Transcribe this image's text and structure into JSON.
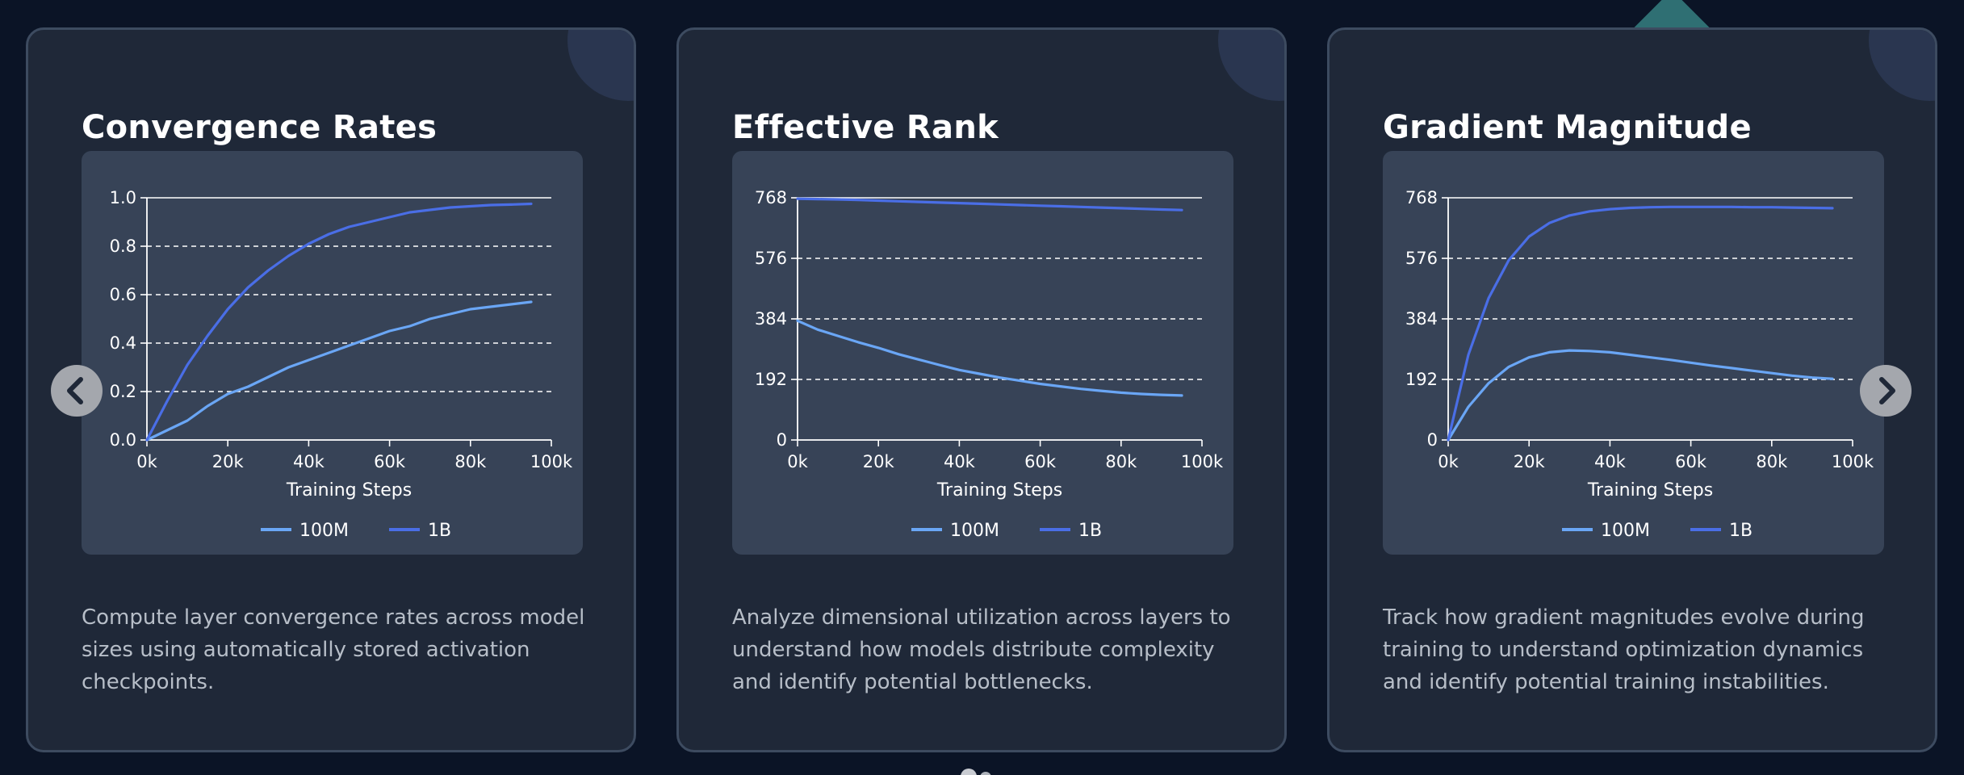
{
  "carousel": {
    "prev_icon": "chevron-left-icon",
    "next_icon": "chevron-right-icon",
    "dots": 2
  },
  "colors": {
    "background": "#0b1426",
    "card": "#1f2838",
    "card_border": "#3d4b60",
    "chart_panel": "#374357",
    "series_100M": "#6aa6f5",
    "series_1B": "#4a6ee6"
  },
  "cards": [
    {
      "title": "Convergence Rates",
      "description": "Compute layer convergence rates across model sizes using automatically stored activation checkpoints.",
      "chart_data": {
        "type": "line",
        "title": "",
        "xlabel": "Training Steps",
        "ylabel": "",
        "xlim": [
          0,
          100000
        ],
        "ylim": [
          0,
          1.0
        ],
        "x_ticks": [
          "0k",
          "20k",
          "40k",
          "60k",
          "80k",
          "100k"
        ],
        "y_ticks": [
          "0.0",
          "0.2",
          "0.4",
          "0.6",
          "0.8",
          "1.0"
        ],
        "y_tick_values": [
          0,
          0.2,
          0.4,
          0.6,
          0.8,
          1.0
        ],
        "grid": "horizontal dashed",
        "legend_position": "bottom",
        "x": [
          0,
          5000,
          10000,
          15000,
          20000,
          25000,
          30000,
          35000,
          40000,
          45000,
          50000,
          55000,
          60000,
          65000,
          70000,
          75000,
          80000,
          85000,
          90000,
          95000
        ],
        "series": [
          {
            "name": "100M",
            "color": "#6aa6f5",
            "values": [
              0.0,
              0.04,
              0.08,
              0.14,
              0.19,
              0.22,
              0.26,
              0.3,
              0.33,
              0.36,
              0.39,
              0.42,
              0.45,
              0.47,
              0.5,
              0.52,
              0.54,
              0.55,
              0.56,
              0.57
            ]
          },
          {
            "name": "1B",
            "color": "#4a6ee6",
            "values": [
              0.0,
              0.16,
              0.31,
              0.43,
              0.54,
              0.63,
              0.7,
              0.76,
              0.81,
              0.85,
              0.88,
              0.9,
              0.92,
              0.94,
              0.95,
              0.96,
              0.965,
              0.97,
              0.972,
              0.975
            ]
          }
        ]
      }
    },
    {
      "title": "Effective Rank",
      "description": "Analyze dimensional utilization across layers to understand how models distribute complexity and identify potential bottlenecks.",
      "chart_data": {
        "type": "line",
        "title": "",
        "xlabel": "Training Steps",
        "ylabel": "",
        "xlim": [
          0,
          100000
        ],
        "ylim": [
          0,
          768
        ],
        "x_ticks": [
          "0k",
          "20k",
          "40k",
          "60k",
          "80k",
          "100k"
        ],
        "y_ticks": [
          "0",
          "192",
          "384",
          "576",
          "768"
        ],
        "y_tick_values": [
          0,
          192,
          384,
          576,
          768
        ],
        "grid": "horizontal dashed",
        "legend_position": "bottom",
        "x": [
          0,
          5000,
          10000,
          15000,
          20000,
          25000,
          30000,
          35000,
          40000,
          45000,
          50000,
          55000,
          60000,
          65000,
          70000,
          75000,
          80000,
          85000,
          90000,
          95000
        ],
        "series": [
          {
            "name": "100M",
            "color": "#6aa6f5",
            "values": [
              378,
              350,
              330,
              310,
              292,
              272,
              255,
              238,
              222,
              210,
              198,
              188,
              178,
              170,
              162,
              156,
              150,
              146,
              143,
              141
            ]
          },
          {
            "name": "1B",
            "color": "#4a6ee6",
            "values": [
              765,
              764,
              763,
              761,
              759,
              757,
              755,
              753,
              751,
              749,
              747,
              745,
              743,
              741,
              739,
              737,
              735,
              733,
              731,
              729
            ]
          }
        ]
      }
    },
    {
      "title": "Gradient Magnitude",
      "description": "Track how gradient magnitudes evolve during training to understand optimization dynamics and identify potential training instabilities.",
      "chart_data": {
        "type": "line",
        "title": "",
        "xlabel": "Training Steps",
        "ylabel": "",
        "xlim": [
          0,
          100000
        ],
        "ylim": [
          0,
          768
        ],
        "x_ticks": [
          "0k",
          "20k",
          "40k",
          "60k",
          "80k",
          "100k"
        ],
        "y_ticks": [
          "0",
          "192",
          "384",
          "576",
          "768"
        ],
        "y_tick_values": [
          0,
          192,
          384,
          576,
          768
        ],
        "grid": "horizontal dashed",
        "legend_position": "bottom",
        "x": [
          0,
          5000,
          10000,
          15000,
          20000,
          25000,
          30000,
          35000,
          40000,
          45000,
          50000,
          55000,
          60000,
          65000,
          70000,
          75000,
          80000,
          85000,
          90000,
          95000
        ],
        "series": [
          {
            "name": "100M",
            "color": "#6aa6f5",
            "values": [
              0,
              105,
              180,
              232,
              262,
              278,
              284,
              282,
              278,
              270,
              262,
              254,
              245,
              236,
              228,
              220,
              212,
              204,
              198,
              194
            ]
          },
          {
            "name": "1B",
            "color": "#4a6ee6",
            "values": [
              0,
              270,
              450,
              570,
              645,
              688,
              712,
              725,
              732,
              736,
              738,
              739,
              739,
              739,
              739,
              738,
              738,
              737,
              736,
              735
            ]
          }
        ]
      }
    }
  ]
}
